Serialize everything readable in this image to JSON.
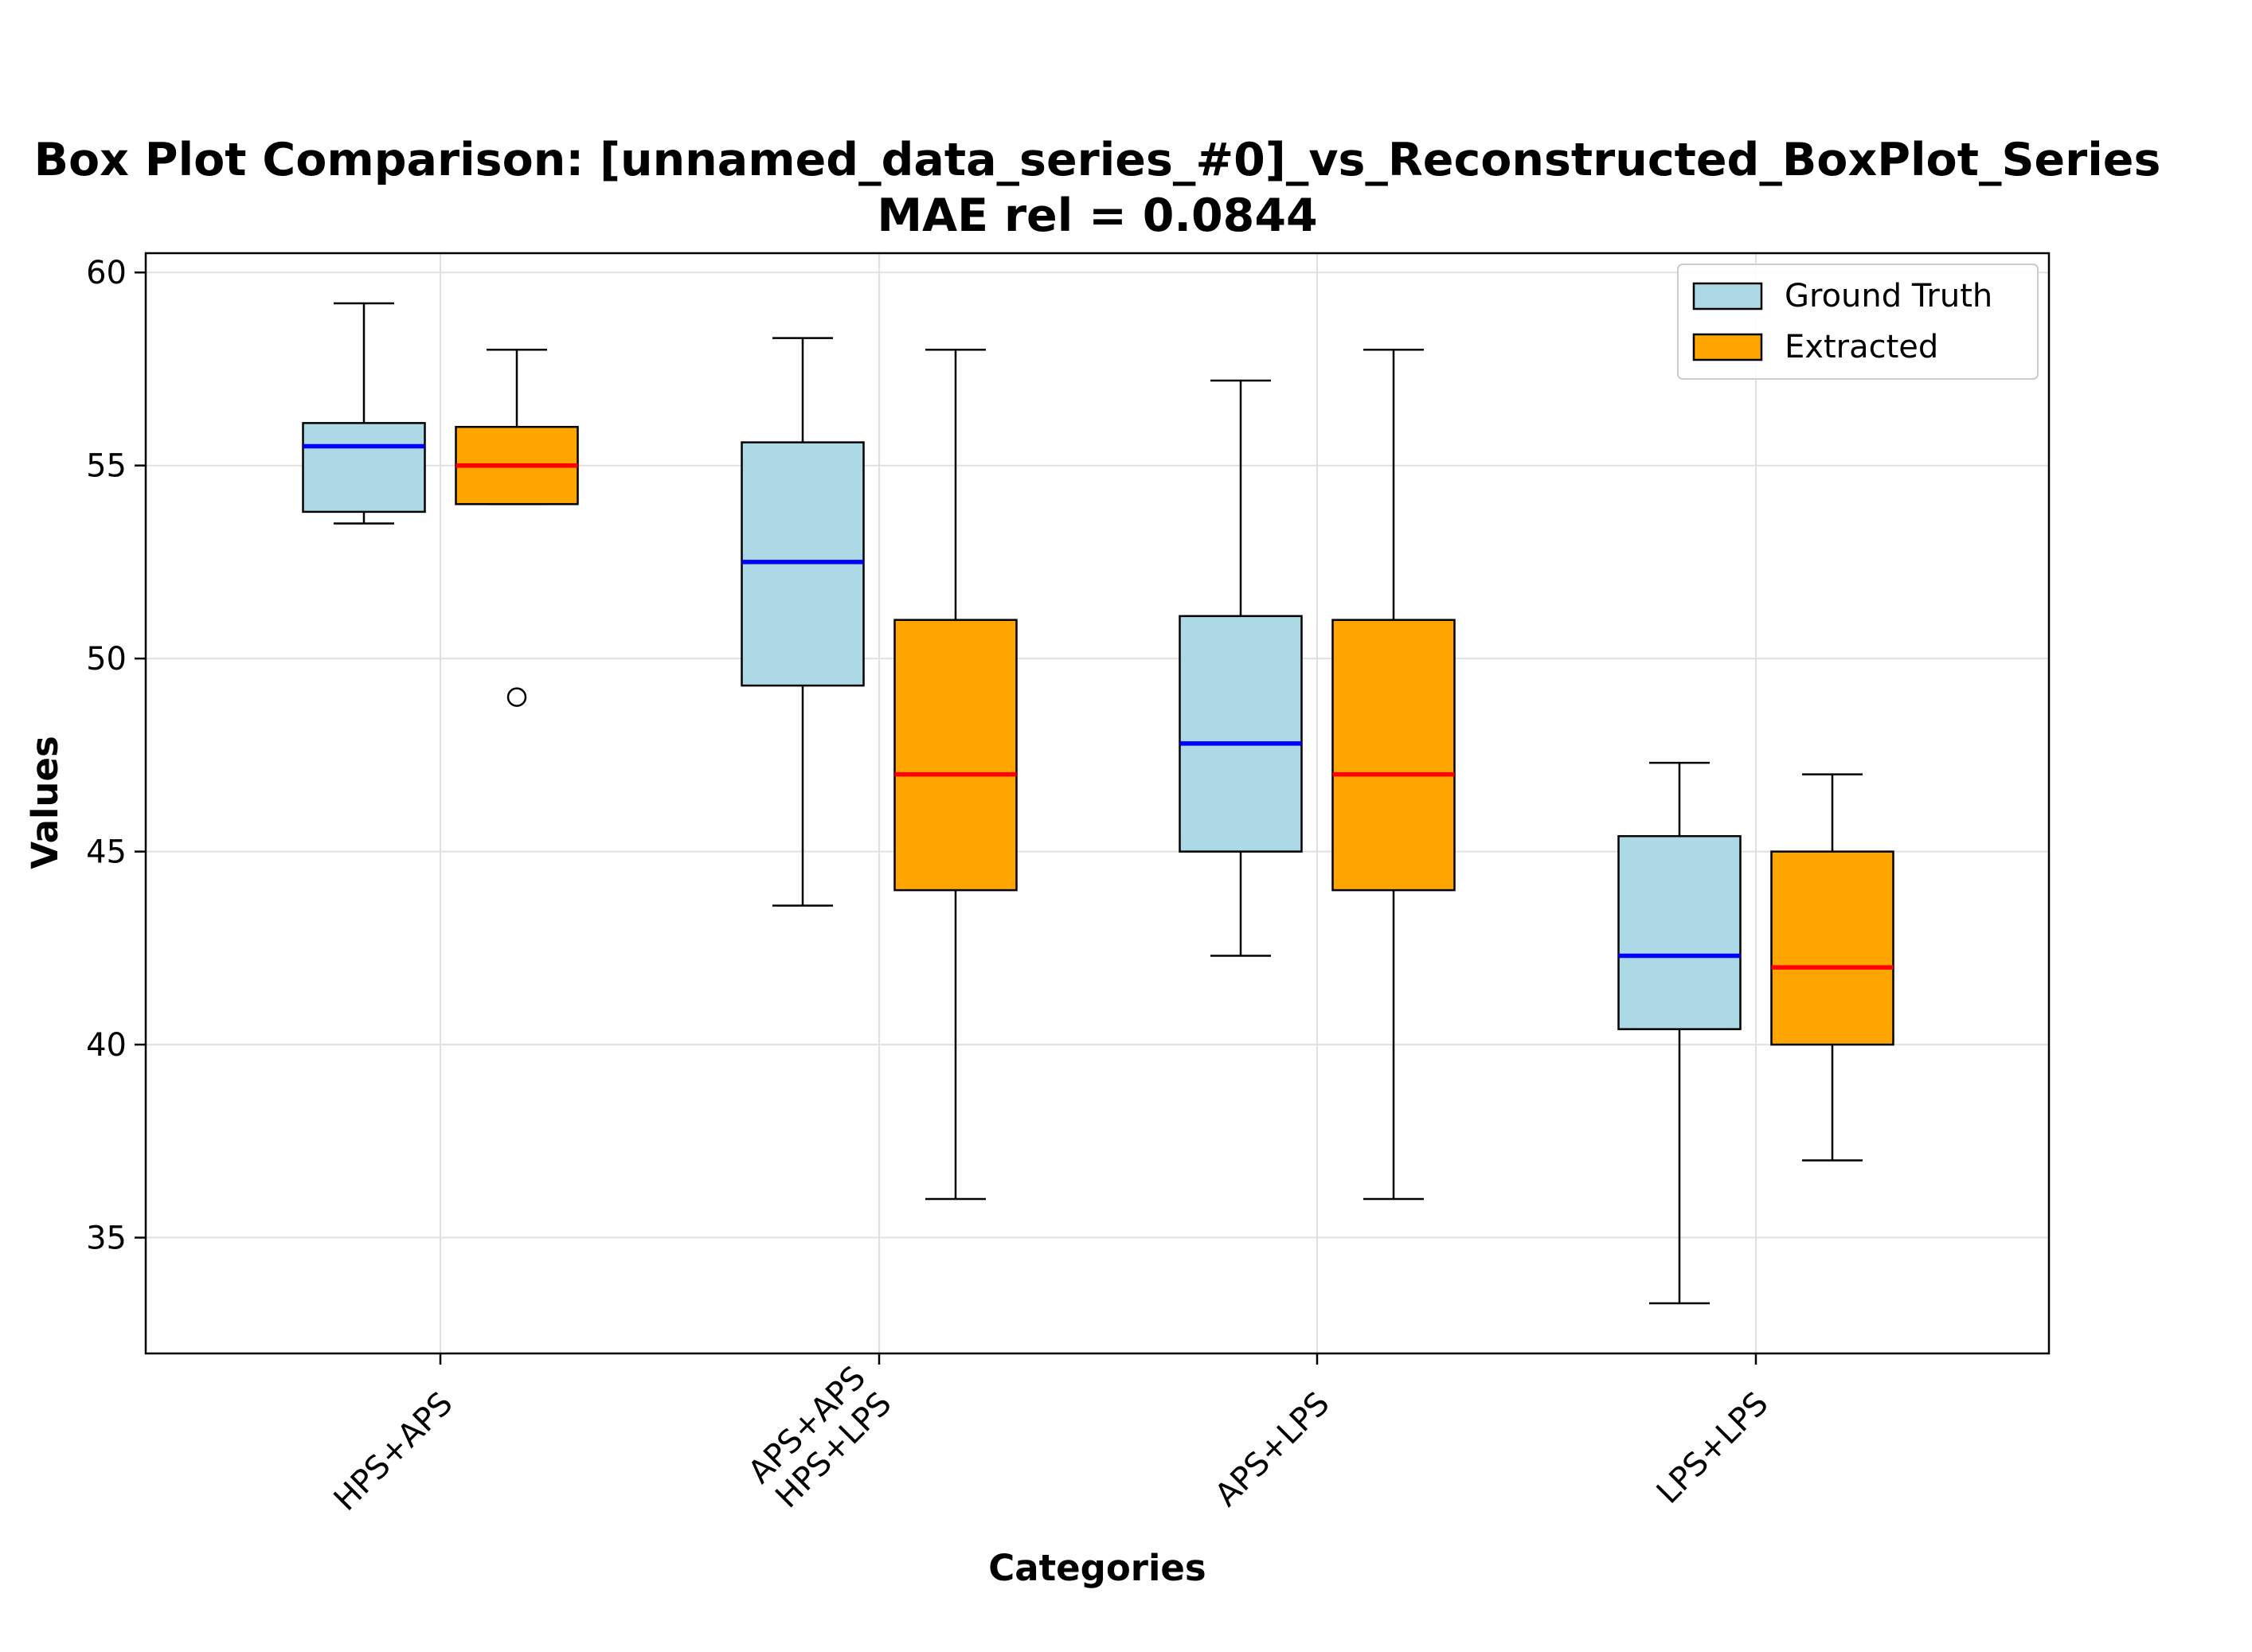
{
  "chart_data": {
    "type": "box",
    "title_line1": "Box Plot Comparison: [unnamed_data_series_#0]_vs_Reconstructed_BoxPlot_Series",
    "title_line2": "MAE rel = 0.0844",
    "xlabel": "Categories",
    "ylabel": "Values",
    "ylim": [
      32.0,
      60.5
    ],
    "yticks": [
      35,
      40,
      45,
      50,
      55,
      60
    ],
    "grid": true,
    "legend_position": "top-right",
    "categories": [
      {
        "lines": [
          "HPS+APS"
        ]
      },
      {
        "lines": [
          "APS+APS",
          "HPS+LPS"
        ]
      },
      {
        "lines": [
          "APS+LPS"
        ]
      },
      {
        "lines": [
          "LPS+LPS"
        ]
      }
    ],
    "series": [
      {
        "name": "Ground Truth",
        "fill": "#add8e6",
        "median_color": "#0000ff",
        "boxes": [
          {
            "whisker_low": 53.5,
            "q1": 53.8,
            "median": 55.5,
            "q3": 56.1,
            "whisker_high": 59.2,
            "outliers": []
          },
          {
            "whisker_low": 43.6,
            "q1": 49.3,
            "median": 52.5,
            "q3": 55.6,
            "whisker_high": 58.3,
            "outliers": []
          },
          {
            "whisker_low": 42.3,
            "q1": 45.0,
            "median": 47.8,
            "q3": 51.1,
            "whisker_high": 57.2,
            "outliers": []
          },
          {
            "whisker_low": 33.3,
            "q1": 40.4,
            "median": 42.3,
            "q3": 45.4,
            "whisker_high": 47.3,
            "outliers": []
          }
        ]
      },
      {
        "name": "Extracted",
        "fill": "#ffa500",
        "median_color": "#ff0000",
        "boxes": [
          {
            "whisker_low": 54.0,
            "q1": 54.0,
            "median": 55.0,
            "q3": 56.0,
            "whisker_high": 58.0,
            "outliers": [
              49.0
            ]
          },
          {
            "whisker_low": 36.0,
            "q1": 44.0,
            "median": 47.0,
            "q3": 51.0,
            "whisker_high": 58.0,
            "outliers": []
          },
          {
            "whisker_low": 36.0,
            "q1": 44.0,
            "median": 47.0,
            "q3": 51.0,
            "whisker_high": 58.0,
            "outliers": []
          },
          {
            "whisker_low": 37.0,
            "q1": 40.0,
            "median": 42.0,
            "q3": 45.0,
            "whisker_high": 47.0,
            "outliers": []
          }
        ]
      }
    ]
  }
}
